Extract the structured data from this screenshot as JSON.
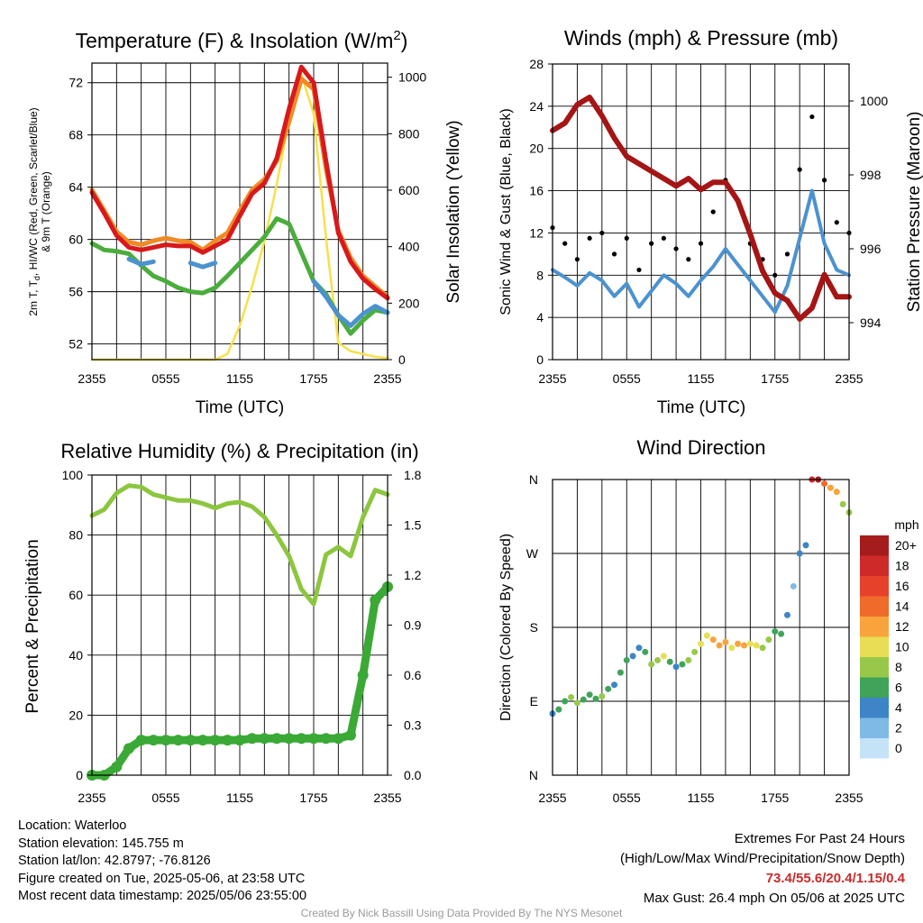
{
  "time_ticks": [
    "2355",
    "0555",
    "1155",
    "1755",
    "2355"
  ],
  "legend": {
    "title": "mph",
    "labels": [
      "20+",
      "18",
      "16",
      "14",
      "12",
      "10",
      "8",
      "6",
      "4",
      "2",
      "0"
    ],
    "colors": [
      "#a51c1c",
      "#cf2a2a",
      "#e6412b",
      "#f06a2a",
      "#f9a33c",
      "#e8de55",
      "#98c84a",
      "#3fa45a",
      "#3d85c6",
      "#7fb9e6",
      "#c4e3f7"
    ]
  },
  "chart_data": [
    {
      "type": "line",
      "title": "Temperature (F) & Insolation (W/m²)",
      "title_main": "Temperature (F) & Insolation (W/m",
      "title_sup": "2",
      "title_end": ")",
      "xlabel": "Time (UTC)",
      "ylabel_left_1": "2m T, T",
      "ylabel_left_sub": "d",
      "ylabel_left_2": ", HI/WC (Red, Green, Scarlet/Blue)",
      "ylabel_left_3": "& 9m T (Orange)",
      "ylabel_right": "Solar Insolation (Yellow)",
      "x_hours": [
        0,
        1,
        2,
        3,
        4,
        5,
        6,
        7,
        8,
        9,
        10,
        11,
        12,
        13,
        14,
        15,
        16,
        17,
        18,
        19,
        20,
        21,
        22,
        23,
        24
      ],
      "ylim": [
        50.8,
        73.5
      ],
      "yticks": [
        52,
        56,
        60,
        64,
        68,
        72
      ],
      "ylim_right": [
        0,
        1050
      ],
      "yticks_right": [
        0,
        200,
        400,
        600,
        800,
        1000
      ],
      "series": [
        {
          "color": "#f08a24",
          "values": [
            63.8,
            62.2,
            60.6,
            59.8,
            59.6,
            59.9,
            60.1,
            59.9,
            59.8,
            59.2,
            59.9,
            60.5,
            62.2,
            63.8,
            64.6,
            66.0,
            69.0,
            72.3,
            71.5,
            65.4,
            60.7,
            58.6,
            57.2,
            56.4,
            55.6
          ]
        },
        {
          "color": "#d7191c",
          "values": [
            63.6,
            62.0,
            60.3,
            59.4,
            59.2,
            59.4,
            59.6,
            59.5,
            59.5,
            59.0,
            59.5,
            60.0,
            61.8,
            63.5,
            64.3,
            66.2,
            70.0,
            73.2,
            72.0,
            66.0,
            60.5,
            58.3,
            57.0,
            56.2,
            55.5
          ]
        },
        {
          "color": "#4aad3c",
          "values": [
            59.7,
            59.2,
            59.1,
            58.9,
            58.0,
            57.2,
            56.8,
            56.3,
            56.0,
            55.9,
            56.3,
            57.2,
            58.2,
            59.2,
            60.2,
            61.6,
            61.2,
            59.0,
            56.8,
            55.8,
            54.2,
            52.8,
            53.8,
            54.6,
            54.4
          ]
        },
        {
          "color": "#4b92cf",
          "values": [
            null,
            null,
            null,
            58.5,
            58.1,
            58.3,
            null,
            null,
            58.2,
            57.9,
            58.2,
            null,
            null,
            null,
            null,
            null,
            null,
            null,
            56.8,
            55.6,
            54.2,
            53.4,
            54.3,
            54.9,
            54.4
          ]
        },
        {
          "color": "#f7e04a",
          "right_axis": true,
          "values": [
            0,
            0,
            0,
            0,
            0,
            0,
            0,
            0,
            0,
            0,
            0,
            20,
            120,
            260,
            420,
            620,
            850,
            1010,
            870,
            430,
            60,
            30,
            20,
            10,
            5
          ]
        }
      ]
    },
    {
      "type": "line",
      "title": "Winds (mph) & Pressure (mb)",
      "xlabel": "Time (UTC)",
      "ylabel": "Sonic Wind & Gust (Blue, Black)",
      "ylabel_right": "Station Pressure (Maroon)",
      "x_hours": [
        0,
        1,
        2,
        3,
        4,
        5,
        6,
        7,
        8,
        9,
        10,
        11,
        12,
        13,
        14,
        15,
        16,
        17,
        18,
        19,
        20,
        21,
        22,
        23,
        24
      ],
      "ylim": [
        0,
        28
      ],
      "yticks": [
        0,
        4,
        8,
        12,
        16,
        20,
        24,
        28
      ],
      "ylim_right": [
        993.0,
        1001.0
      ],
      "yticks_right": [
        994,
        996,
        998,
        1000
      ],
      "series": [
        {
          "name": "Pressure",
          "color": "#a51515",
          "right_axis": true,
          "values": [
            999.2,
            999.4,
            999.9,
            1000.1,
            999.6,
            999.0,
            998.5,
            998.3,
            998.1,
            997.9,
            997.7,
            997.9,
            997.6,
            997.8,
            997.8,
            997.3,
            996.4,
            995.4,
            994.8,
            994.6,
            994.1,
            994.4,
            995.3,
            994.7,
            994.7
          ]
        },
        {
          "name": "Sonic Wind",
          "color": "#4b92cf",
          "values": [
            8.5,
            7.8,
            7.0,
            8.2,
            7.5,
            6.0,
            7.2,
            5.0,
            6.5,
            8.0,
            7.2,
            6.0,
            7.5,
            8.8,
            10.5,
            9.0,
            7.5,
            6.0,
            4.5,
            7.0,
            11.5,
            16.0,
            11.0,
            8.5,
            8.0
          ]
        },
        {
          "name": "Gust",
          "color": "#000000",
          "values": [
            12.5,
            11.0,
            9.5,
            11.5,
            12.0,
            10.0,
            11.5,
            8.5,
            11.0,
            11.5,
            10.5,
            9.5,
            11.0,
            14.0,
            17.0,
            15.0,
            11.0,
            9.5,
            8.0,
            10.0,
            18.0,
            23.0,
            17.0,
            13.0,
            12.0
          ]
        }
      ]
    },
    {
      "type": "line",
      "title": "Relative Humidity (%) & Precipitation (in)",
      "ylabel": "Percent & Precipitation",
      "x_hours": [
        0,
        1,
        2,
        3,
        4,
        5,
        6,
        7,
        8,
        9,
        10,
        11,
        12,
        13,
        14,
        15,
        16,
        17,
        18,
        19,
        20,
        21,
        22,
        23,
        24
      ],
      "ylim": [
        0,
        100
      ],
      "yticks": [
        0,
        20,
        40,
        60,
        80,
        100
      ],
      "ylim_right": [
        0,
        1.8
      ],
      "yticks_right": [
        "0.0",
        "0.3",
        "0.6",
        "0.9",
        "1.2",
        "1.5",
        "1.8"
      ],
      "series": [
        {
          "name": "Relative Humidity",
          "color": "#8cc63f",
          "values": [
            86.5,
            88.5,
            94.0,
            96.5,
            96.0,
            93.5,
            92.5,
            91.5,
            91.5,
            90.5,
            89.0,
            90.5,
            91.0,
            89.5,
            86.0,
            80.0,
            73.0,
            62.0,
            57.0,
            73.5,
            76.0,
            73.0,
            86.0,
            95.0,
            93.5
          ]
        },
        {
          "name": "Precipitation",
          "color": "#3aa935",
          "values": [
            0.0,
            0.0,
            0.05,
            0.16,
            0.21,
            0.21,
            0.21,
            0.21,
            0.21,
            0.21,
            0.21,
            0.21,
            0.21,
            0.22,
            0.22,
            0.22,
            0.22,
            0.22,
            0.22,
            0.22,
            0.22,
            0.24,
            0.6,
            1.05,
            1.13
          ]
        }
      ]
    },
    {
      "type": "scatter",
      "title": "Wind Direction",
      "ylabel": "Direction (Colored By Speed)",
      "ytick_labels": [
        "N",
        "E",
        "S",
        "W",
        "N"
      ],
      "ylim": [
        0,
        360
      ],
      "x_hours": [
        0,
        0.5,
        1,
        1.5,
        2,
        2.5,
        3,
        3.5,
        4,
        4.5,
        5,
        5.5,
        6,
        6.5,
        7,
        7.5,
        8,
        8.5,
        9,
        9.5,
        10,
        10.5,
        11,
        11.5,
        12,
        12.5,
        13,
        13.5,
        14,
        14.5,
        15,
        15.5,
        16,
        16.5,
        17,
        17.5,
        18,
        18.5,
        19,
        19.5,
        20,
        20.5,
        21,
        21.5,
        22,
        22.5,
        23,
        23.5,
        24
      ],
      "direction": [
        75,
        80,
        90,
        95,
        88,
        92,
        98,
        93,
        96,
        105,
        110,
        125,
        140,
        145,
        155,
        150,
        135,
        140,
        145,
        138,
        132,
        135,
        140,
        150,
        160,
        170,
        165,
        158,
        162,
        155,
        160,
        158,
        160,
        158,
        155,
        165,
        175,
        172,
        195,
        230,
        270,
        280,
        360,
        360,
        355,
        350,
        345,
        330,
        320
      ],
      "speed": [
        4,
        5,
        6,
        7,
        8,
        6,
        5,
        6,
        7,
        5,
        4,
        5,
        6,
        3,
        4,
        6,
        7,
        8,
        9,
        5,
        4,
        6,
        7,
        8,
        9,
        10,
        11,
        12,
        11,
        10,
        11,
        12,
        10,
        9,
        8,
        7,
        6,
        5,
        3,
        2,
        3,
        4,
        18,
        19,
        14,
        11,
        12,
        8,
        7
      ]
    }
  ],
  "info": {
    "location": "Location: Waterloo",
    "elevation": "Station elevation: 145.755 m",
    "latlon": "Station lat/lon: 42.8797; -76.8126",
    "created": "Figure created on Tue, 2025-05-06, at 23:58 UTC",
    "recent": "Most recent data timestamp: 2025/05/06 23:55:00"
  },
  "extremes": {
    "title": "Extremes For Past 24 Hours",
    "subtitle": "(High/Low/Max Wind/Precipitation/Snow Depth)",
    "values": "73.4/55.6/20.4/1.15/0.4",
    "gust": "Max Gust: 26.4 mph On 05/06 at 2025 UTC"
  },
  "credit": "Created By Nick Bassill Using Data Provided By The NYS Mesonet"
}
